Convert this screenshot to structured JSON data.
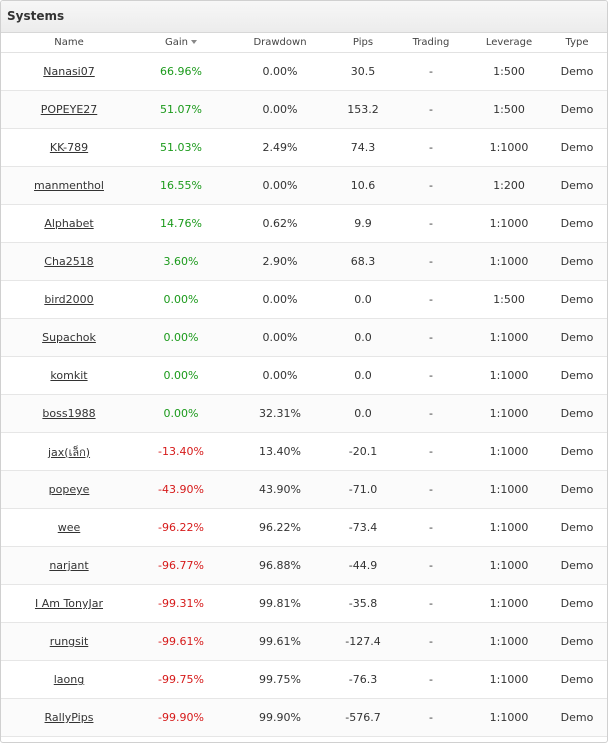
{
  "panel": {
    "title": "Systems"
  },
  "columns": {
    "name": "Name",
    "gain": "Gain",
    "drawdown": "Drawdown",
    "pips": "Pips",
    "trading": "Trading",
    "leverage": "Leverage",
    "type": "Type"
  },
  "colors": {
    "positive": "#1b9a1b",
    "negative": "#d61a1a"
  },
  "rows": [
    {
      "name": "Nanasi07",
      "gain": "66.96%",
      "drawdown": "0.00%",
      "pips": "30.5",
      "trading": "-",
      "leverage": "1:500",
      "type": "Demo"
    },
    {
      "name": "POPEYE27",
      "gain": "51.07%",
      "drawdown": "0.00%",
      "pips": "153.2",
      "trading": "-",
      "leverage": "1:500",
      "type": "Demo"
    },
    {
      "name": "KK-789",
      "gain": "51.03%",
      "drawdown": "2.49%",
      "pips": "74.3",
      "trading": "-",
      "leverage": "1:1000",
      "type": "Demo"
    },
    {
      "name": "manmenthol",
      "gain": "16.55%",
      "drawdown": "0.00%",
      "pips": "10.6",
      "trading": "-",
      "leverage": "1:200",
      "type": "Demo"
    },
    {
      "name": "Alphabet",
      "gain": "14.76%",
      "drawdown": "0.62%",
      "pips": "9.9",
      "trading": "-",
      "leverage": "1:1000",
      "type": "Demo"
    },
    {
      "name": "Cha2518",
      "gain": "3.60%",
      "drawdown": "2.90%",
      "pips": "68.3",
      "trading": "-",
      "leverage": "1:1000",
      "type": "Demo"
    },
    {
      "name": "bird2000",
      "gain": "0.00%",
      "drawdown": "0.00%",
      "pips": "0.0",
      "trading": "-",
      "leverage": "1:500",
      "type": "Demo"
    },
    {
      "name": "Supachok",
      "gain": "0.00%",
      "drawdown": "0.00%",
      "pips": "0.0",
      "trading": "-",
      "leverage": "1:1000",
      "type": "Demo"
    },
    {
      "name": "komkit",
      "gain": "0.00%",
      "drawdown": "0.00%",
      "pips": "0.0",
      "trading": "-",
      "leverage": "1:1000",
      "type": "Demo"
    },
    {
      "name": "boss1988",
      "gain": "0.00%",
      "drawdown": "32.31%",
      "pips": "0.0",
      "trading": "-",
      "leverage": "1:1000",
      "type": "Demo"
    },
    {
      "name": "jax(เล็ก)",
      "gain": "-13.40%",
      "drawdown": "13.40%",
      "pips": "-20.1",
      "trading": "-",
      "leverage": "1:1000",
      "type": "Demo"
    },
    {
      "name": "popeye",
      "gain": "-43.90%",
      "drawdown": "43.90%",
      "pips": "-71.0",
      "trading": "-",
      "leverage": "1:1000",
      "type": "Demo"
    },
    {
      "name": "wee",
      "gain": "-96.22%",
      "drawdown": "96.22%",
      "pips": "-73.4",
      "trading": "-",
      "leverage": "1:1000",
      "type": "Demo"
    },
    {
      "name": "narjant",
      "gain": "-96.77%",
      "drawdown": "96.88%",
      "pips": "-44.9",
      "trading": "-",
      "leverage": "1:1000",
      "type": "Demo"
    },
    {
      "name": "I Am TonyJar",
      "gain": "-99.31%",
      "drawdown": "99.81%",
      "pips": "-35.8",
      "trading": "-",
      "leverage": "1:1000",
      "type": "Demo"
    },
    {
      "name": "rungsit",
      "gain": "-99.61%",
      "drawdown": "99.61%",
      "pips": "-127.4",
      "trading": "-",
      "leverage": "1:1000",
      "type": "Demo"
    },
    {
      "name": "laong",
      "gain": "-99.75%",
      "drawdown": "99.75%",
      "pips": "-76.3",
      "trading": "-",
      "leverage": "1:1000",
      "type": "Demo"
    },
    {
      "name": "RallyPips",
      "gain": "-99.90%",
      "drawdown": "99.90%",
      "pips": "-576.7",
      "trading": "-",
      "leverage": "1:1000",
      "type": "Demo"
    }
  ]
}
